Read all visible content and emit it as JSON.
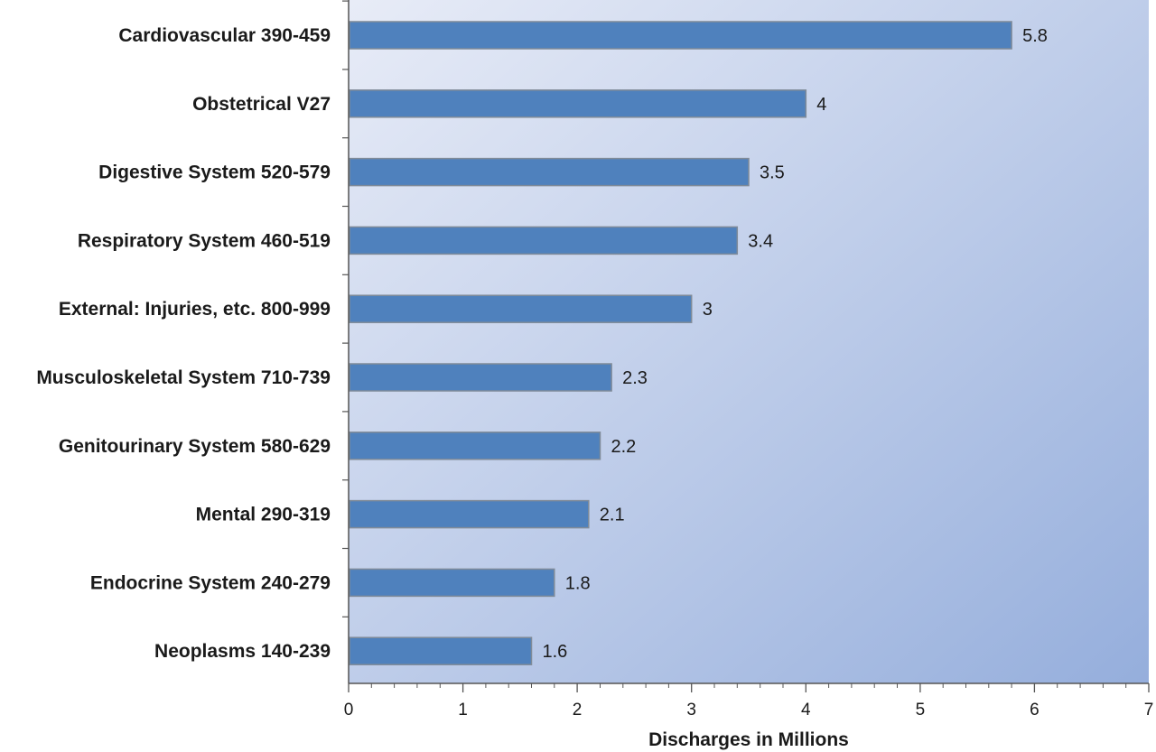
{
  "chart_data": {
    "type": "bar",
    "orientation": "horizontal",
    "categories": [
      "Cardiovascular 390-459",
      "Obstetrical V27",
      "Digestive System 520-579",
      "Respiratory System 460-519",
      "External: Injuries, etc. 800-999",
      "Musculoskeletal System 710-739",
      "Genitourinary System 580-629",
      "Mental 290-319",
      "Endocrine System 240-279",
      "Neoplasms 140-239"
    ],
    "values": [
      5.8,
      4,
      3.5,
      3.4,
      3,
      2.3,
      2.2,
      2.1,
      1.8,
      1.6
    ],
    "data_labels": [
      "5.8",
      "4",
      "3.5",
      "3.4",
      "3",
      "2.3",
      "2.2",
      "2.1",
      "1.8",
      "1.6"
    ],
    "title": "",
    "xlabel": "Discharges in Millions",
    "ylabel": "",
    "xlim": [
      0,
      7
    ],
    "x_ticks": [
      0,
      1,
      2,
      3,
      4,
      5,
      6,
      7
    ],
    "x_tick_labels": [
      "0",
      "1",
      "2",
      "3",
      "4",
      "5",
      "6",
      "7"
    ],
    "minor_ticks_per_major": 5,
    "grid": false,
    "legend": "none",
    "colors": {
      "bar_fill": "#4f81bd",
      "bar_stroke": "#7f8a98",
      "plot_bg_top": "#e8ecf7",
      "plot_bg_bottom": "#95aedc",
      "axis": "#555555",
      "text": "#1a1a1a"
    }
  }
}
